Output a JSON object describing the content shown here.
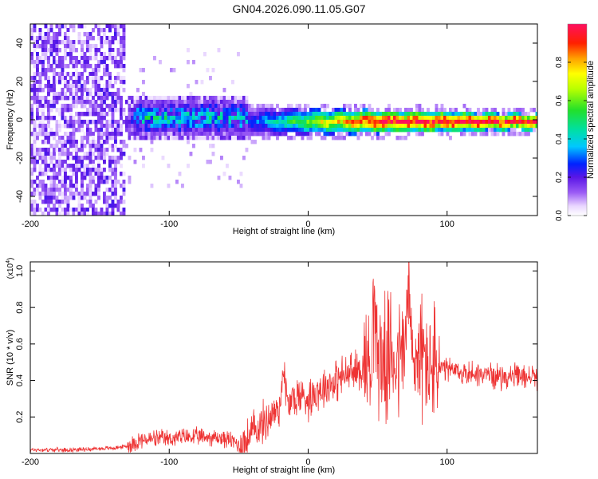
{
  "page_title": "GN04.2026.090.11.05.G07",
  "colorbar": {
    "label": "Normalized spectral amplitude",
    "ticks": [
      "0.0",
      "0.2",
      "0.4",
      "0.6",
      "0.8"
    ],
    "tick_values": [
      0.0,
      0.2,
      0.4,
      0.6,
      0.8
    ],
    "range": [
      0,
      1
    ]
  },
  "chart_data": [
    {
      "type": "heatmap",
      "title": "",
      "xlabel": "Height of straight line (km)",
      "ylabel": "Frequency (Hz)",
      "xlim": [
        -200,
        165
      ],
      "ylim": [
        -50,
        50
      ],
      "xticks": [
        -200,
        -100,
        0,
        100
      ],
      "xtick_labels": [
        "-200",
        "-100",
        "0",
        "100"
      ],
      "yticks": [
        -40,
        -20,
        0,
        20,
        40
      ],
      "ytick_labels": [
        "-40",
        "-20",
        "0",
        "20",
        "40"
      ],
      "regions": [
        {
          "x_from": -200,
          "x_to": -132,
          "description": "broadband noise, amplitude 0.1-0.3, spread over all frequencies"
        },
        {
          "x_from": -132,
          "x_to": -45,
          "freq_center": 2,
          "freq_halfwidth": 12,
          "amplitude_peak": 0.4
        },
        {
          "x_from": -45,
          "x_to": 165,
          "freq_center": 0,
          "freq_halfwidth": 4,
          "amplitude_peak": 1.0
        }
      ]
    },
    {
      "type": "line",
      "title": "",
      "xlabel": "Height of straight line (km)",
      "ylabel": "SNR (10 * v/v)",
      "y_multiplier": "(x10",
      "y_exponent": "4",
      "xlim": [
        -200,
        165
      ],
      "ylim": [
        0,
        1.05
      ],
      "xticks": [
        -200,
        -100,
        0,
        100
      ],
      "xtick_labels": [
        "-200",
        "-100",
        "0",
        "100"
      ],
      "yticks": [
        0.2,
        0.4,
        0.6,
        0.8,
        1.0
      ],
      "ytick_labels": [
        "0.2",
        "0.4",
        "0.6",
        "0.8",
        "1.0"
      ],
      "series": [
        {
          "name": "SNR",
          "color": "#ee3333",
          "x": [
            -200,
            -170,
            -140,
            -130,
            -122,
            -110,
            -100,
            -90,
            -80,
            -70,
            -60,
            -55,
            -50,
            -45,
            -40,
            -35,
            -30,
            -25,
            -20,
            -18,
            -15,
            -10,
            -5,
            0,
            5,
            10,
            15,
            20,
            25,
            30,
            35,
            40,
            45,
            47,
            50,
            55,
            60,
            65,
            70,
            72,
            75,
            80,
            85,
            90,
            95,
            100,
            110,
            120,
            130,
            140,
            150,
            160,
            165
          ],
          "y": [
            0.02,
            0.02,
            0.03,
            0.04,
            0.07,
            0.08,
            0.08,
            0.09,
            0.09,
            0.09,
            0.08,
            0.07,
            0.05,
            0.06,
            0.12,
            0.15,
            0.18,
            0.22,
            0.26,
            0.5,
            0.26,
            0.3,
            0.32,
            0.3,
            0.34,
            0.36,
            0.38,
            0.4,
            0.42,
            0.44,
            0.45,
            0.48,
            0.5,
            0.85,
            0.55,
            0.5,
            0.55,
            0.5,
            0.6,
            0.92,
            0.5,
            0.55,
            0.5,
            0.48,
            0.46,
            0.46,
            0.44,
            0.44,
            0.43,
            0.42,
            0.42,
            0.42,
            0.42
          ]
        }
      ]
    }
  ]
}
